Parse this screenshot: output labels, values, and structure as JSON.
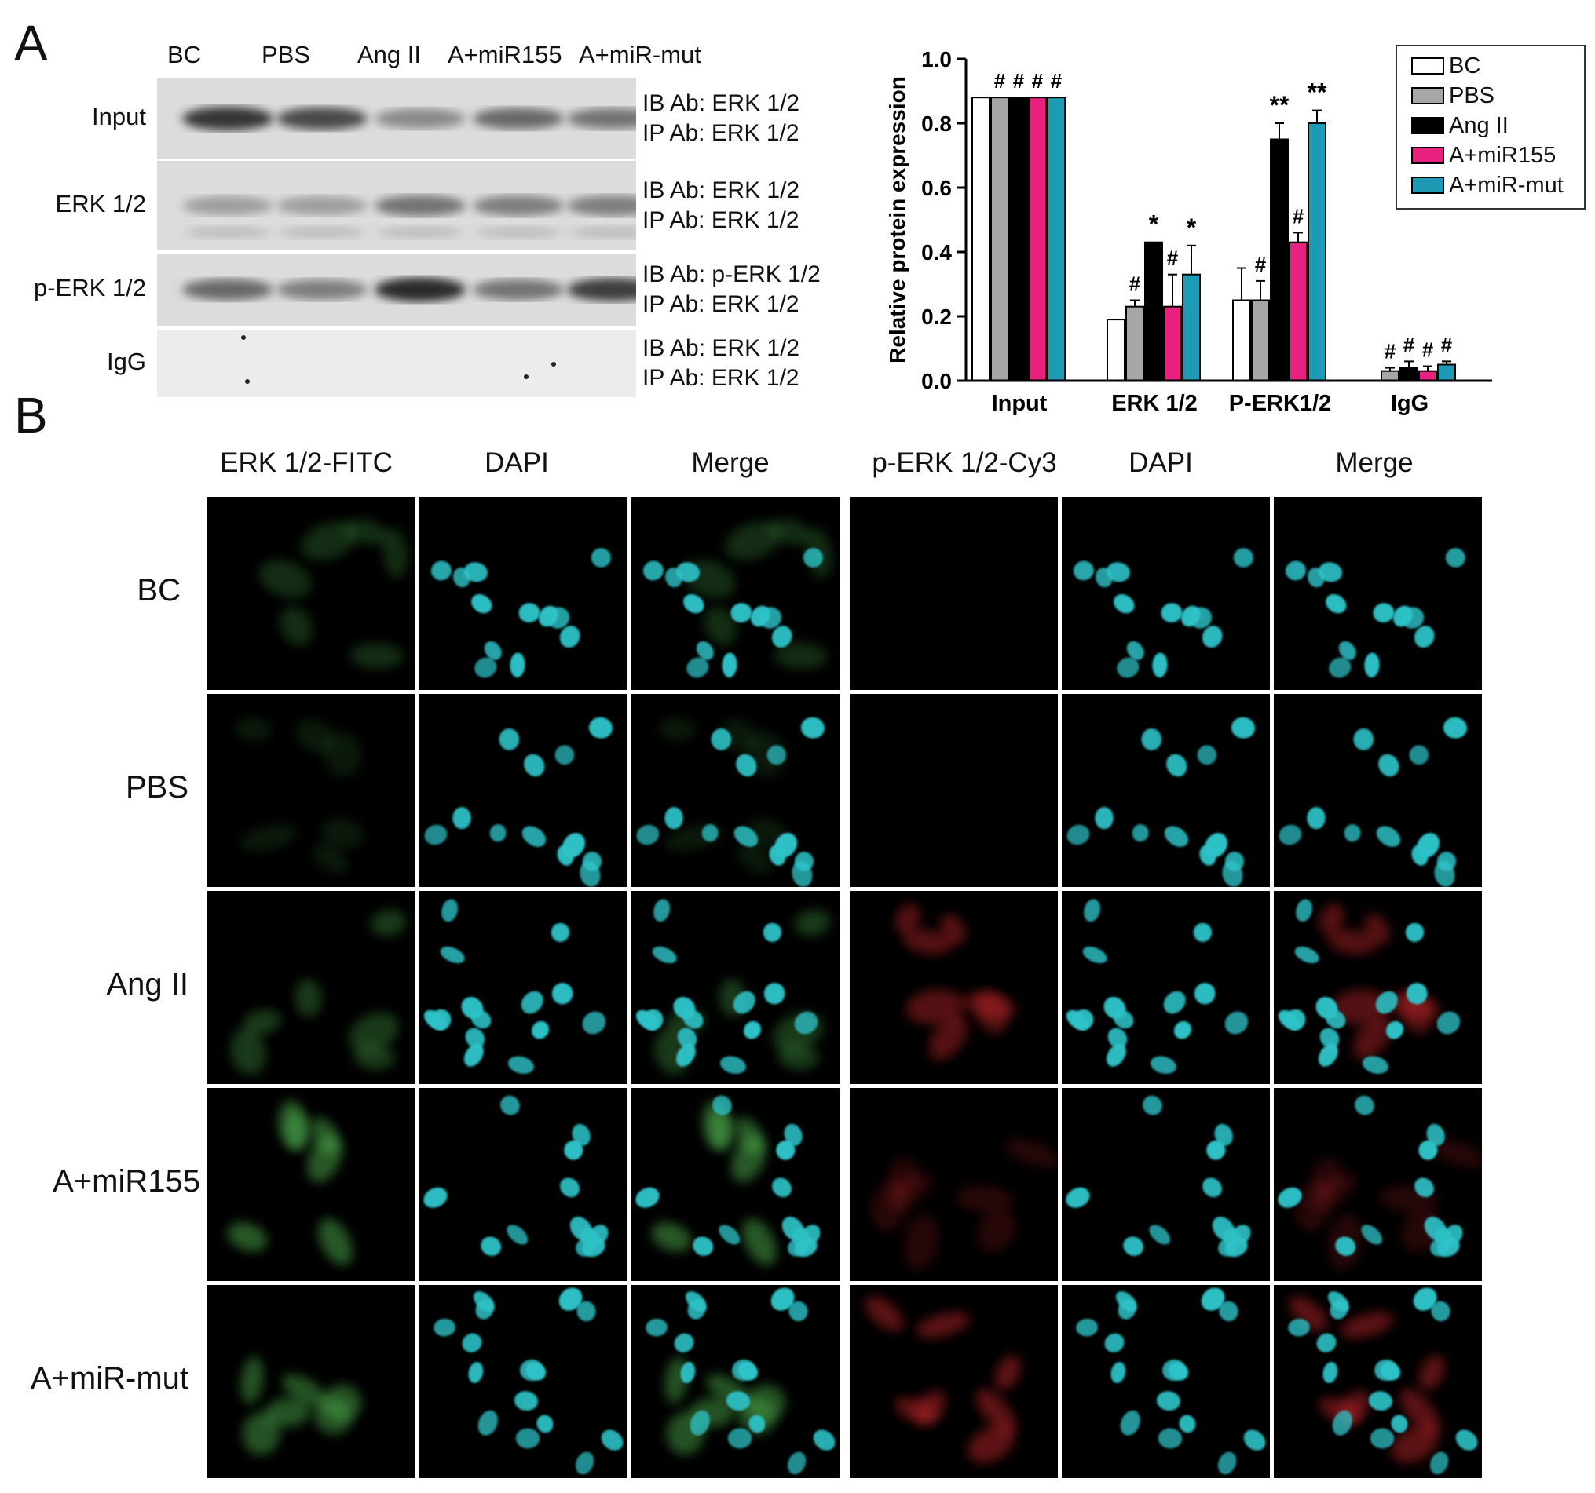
{
  "panelA": {
    "letter": "A",
    "lanes": [
      "BC",
      "PBS",
      "Ang II",
      "A+miR155",
      "A+miR-mut"
    ],
    "rows": [
      {
        "label": "Input",
        "ib": "IB Ab: ERK 1/2",
        "ip": "IP Ab: ERK 1/2"
      },
      {
        "label": "ERK 1/2",
        "ib": "IB Ab: ERK 1/2",
        "ip": "IP Ab: ERK 1/2"
      },
      {
        "label": "p-ERK 1/2",
        "ib": "IB Ab: p-ERK 1/2",
        "ip": "IP Ab: ERK 1/2"
      },
      {
        "label": "IgG",
        "ib": "IB Ab: ERK 1/2",
        "ip": "IP Ab: ERK 1/2"
      }
    ]
  },
  "chart_data": {
    "type": "bar",
    "title": "",
    "xlabel": "",
    "ylabel": "Relative protein expression",
    "ylim": [
      0,
      1.0
    ],
    "yticks": [
      "0.0",
      "0.2",
      "0.4",
      "0.6",
      "0.8",
      "1.0"
    ],
    "grid": false,
    "legend_position": "top-right",
    "categories": [
      "Input",
      "ERK 1/2",
      "P-ERK1/2",
      "IgG"
    ],
    "series": [
      {
        "name": "BC",
        "color": "#ffffff",
        "values": [
          0.88,
          0.19,
          0.25,
          0.0
        ],
        "errors": [
          0.0,
          0.0,
          0.1,
          0.0
        ],
        "marks": [
          "",
          "",
          "",
          ""
        ]
      },
      {
        "name": "PBS",
        "color": "#a6a6a6",
        "values": [
          0.88,
          0.23,
          0.25,
          0.03
        ],
        "errors": [
          0.0,
          0.02,
          0.06,
          0.01
        ],
        "marks": [
          "#",
          "#",
          "#",
          "#"
        ]
      },
      {
        "name": "Ang II",
        "color": "#000000",
        "values": [
          0.88,
          0.43,
          0.75,
          0.04
        ],
        "errors": [
          0.0,
          0.0,
          0.05,
          0.02
        ],
        "marks": [
          "#",
          "*",
          "**",
          "#"
        ]
      },
      {
        "name": "A+miR155",
        "color": "#e8207e",
        "values": [
          0.88,
          0.23,
          0.43,
          0.03
        ],
        "errors": [
          0.0,
          0.1,
          0.03,
          0.015
        ],
        "marks": [
          "#",
          "#",
          "#",
          "#"
        ]
      },
      {
        "name": "A+miR-mut",
        "color": "#1d9bb5",
        "values": [
          0.88,
          0.33,
          0.8,
          0.05
        ],
        "errors": [
          0.0,
          0.09,
          0.04,
          0.01
        ],
        "marks": [
          "#",
          "*",
          "**",
          "#"
        ]
      }
    ]
  },
  "panelB": {
    "letter": "B",
    "columns": [
      "ERK 1/2-FITC",
      "DAPI",
      "Merge",
      "p-ERK 1/2-Cy3",
      "DAPI",
      "Merge"
    ],
    "rows": [
      "BC",
      "PBS",
      "Ang II",
      "A+miR155",
      "A+miR-mut"
    ],
    "green_intensity": [
      0.35,
      0.2,
      0.45,
      0.7,
      0.65
    ],
    "red_intensity": [
      0.0,
      0.0,
      0.55,
      0.25,
      0.6
    ],
    "colors": {
      "dapi": "#2fc3c8",
      "fitc": "#4ca84c",
      "cy3": "#c0262a"
    }
  }
}
